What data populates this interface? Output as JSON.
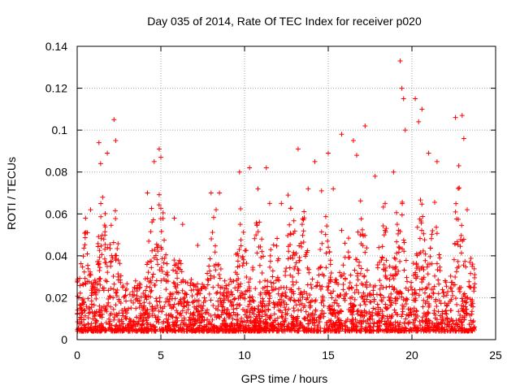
{
  "chart_data": {
    "type": "scatter",
    "title": "Day 035 of 2014, Rate Of TEC Index for receiver p020",
    "xlabel": "GPS time / hours",
    "ylabel": "ROTI / TECUs",
    "xlim": [
      0,
      25
    ],
    "ylim": [
      0,
      0.14
    ],
    "x_ticks": [
      0,
      5,
      10,
      15,
      20,
      25
    ],
    "x_tick_labels": [
      "0",
      "5",
      "10",
      "15",
      "20",
      "25"
    ],
    "y_ticks": [
      0,
      0.02,
      0.04,
      0.06,
      0.08,
      0.1,
      0.12,
      0.14
    ],
    "y_tick_labels": [
      "0",
      "0.02",
      "0.04",
      "0.06",
      "0.08",
      "0.1",
      "0.12",
      "0.14"
    ],
    "grid": true,
    "marker": "plus",
    "series_color": "#ff0000",
    "grid_color": "#a0a0a0",
    "data_x_range_hours": [
      0,
      23.75
    ],
    "series": [
      {
        "name": "ROTI",
        "points": [
          [
            0.5,
            0.058
          ],
          [
            0.8,
            0.062
          ],
          [
            1.3,
            0.094
          ],
          [
            1.4,
            0.084
          ],
          [
            1.8,
            0.089
          ],
          [
            2.2,
            0.105
          ],
          [
            2.3,
            0.095
          ],
          [
            4.2,
            0.07
          ],
          [
            4.6,
            0.085
          ],
          [
            4.9,
            0.091
          ],
          [
            5.0,
            0.087
          ],
          [
            5.8,
            0.058
          ],
          [
            6.3,
            0.055
          ],
          [
            7.2,
            0.045
          ],
          [
            8.0,
            0.07
          ],
          [
            8.3,
            0.062
          ],
          [
            8.5,
            0.07
          ],
          [
            9.7,
            0.08
          ],
          [
            10.3,
            0.082
          ],
          [
            10.8,
            0.072
          ],
          [
            11.3,
            0.082
          ],
          [
            11.5,
            0.065
          ],
          [
            12.2,
            0.065
          ],
          [
            12.6,
            0.069
          ],
          [
            13.2,
            0.091
          ],
          [
            13.8,
            0.072
          ],
          [
            14.2,
            0.085
          ],
          [
            14.6,
            0.071
          ],
          [
            15.0,
            0.089
          ],
          [
            15.3,
            0.072
          ],
          [
            15.8,
            0.098
          ],
          [
            16.5,
            0.095
          ],
          [
            16.7,
            0.088
          ],
          [
            17.2,
            0.102
          ],
          [
            17.8,
            0.078
          ],
          [
            18.4,
            0.065
          ],
          [
            18.9,
            0.08
          ],
          [
            19.3,
            0.133
          ],
          [
            19.4,
            0.12
          ],
          [
            19.5,
            0.115
          ],
          [
            19.6,
            0.1
          ],
          [
            20.2,
            0.115
          ],
          [
            20.4,
            0.104
          ],
          [
            20.6,
            0.11
          ],
          [
            21.0,
            0.089
          ],
          [
            21.5,
            0.085
          ],
          [
            22.6,
            0.106
          ],
          [
            22.8,
            0.083
          ],
          [
            23.0,
            0.107
          ],
          [
            23.1,
            0.096
          ],
          [
            23.3,
            0.062
          ],
          [
            23.6,
            0.035
          ]
        ]
      }
    ]
  }
}
